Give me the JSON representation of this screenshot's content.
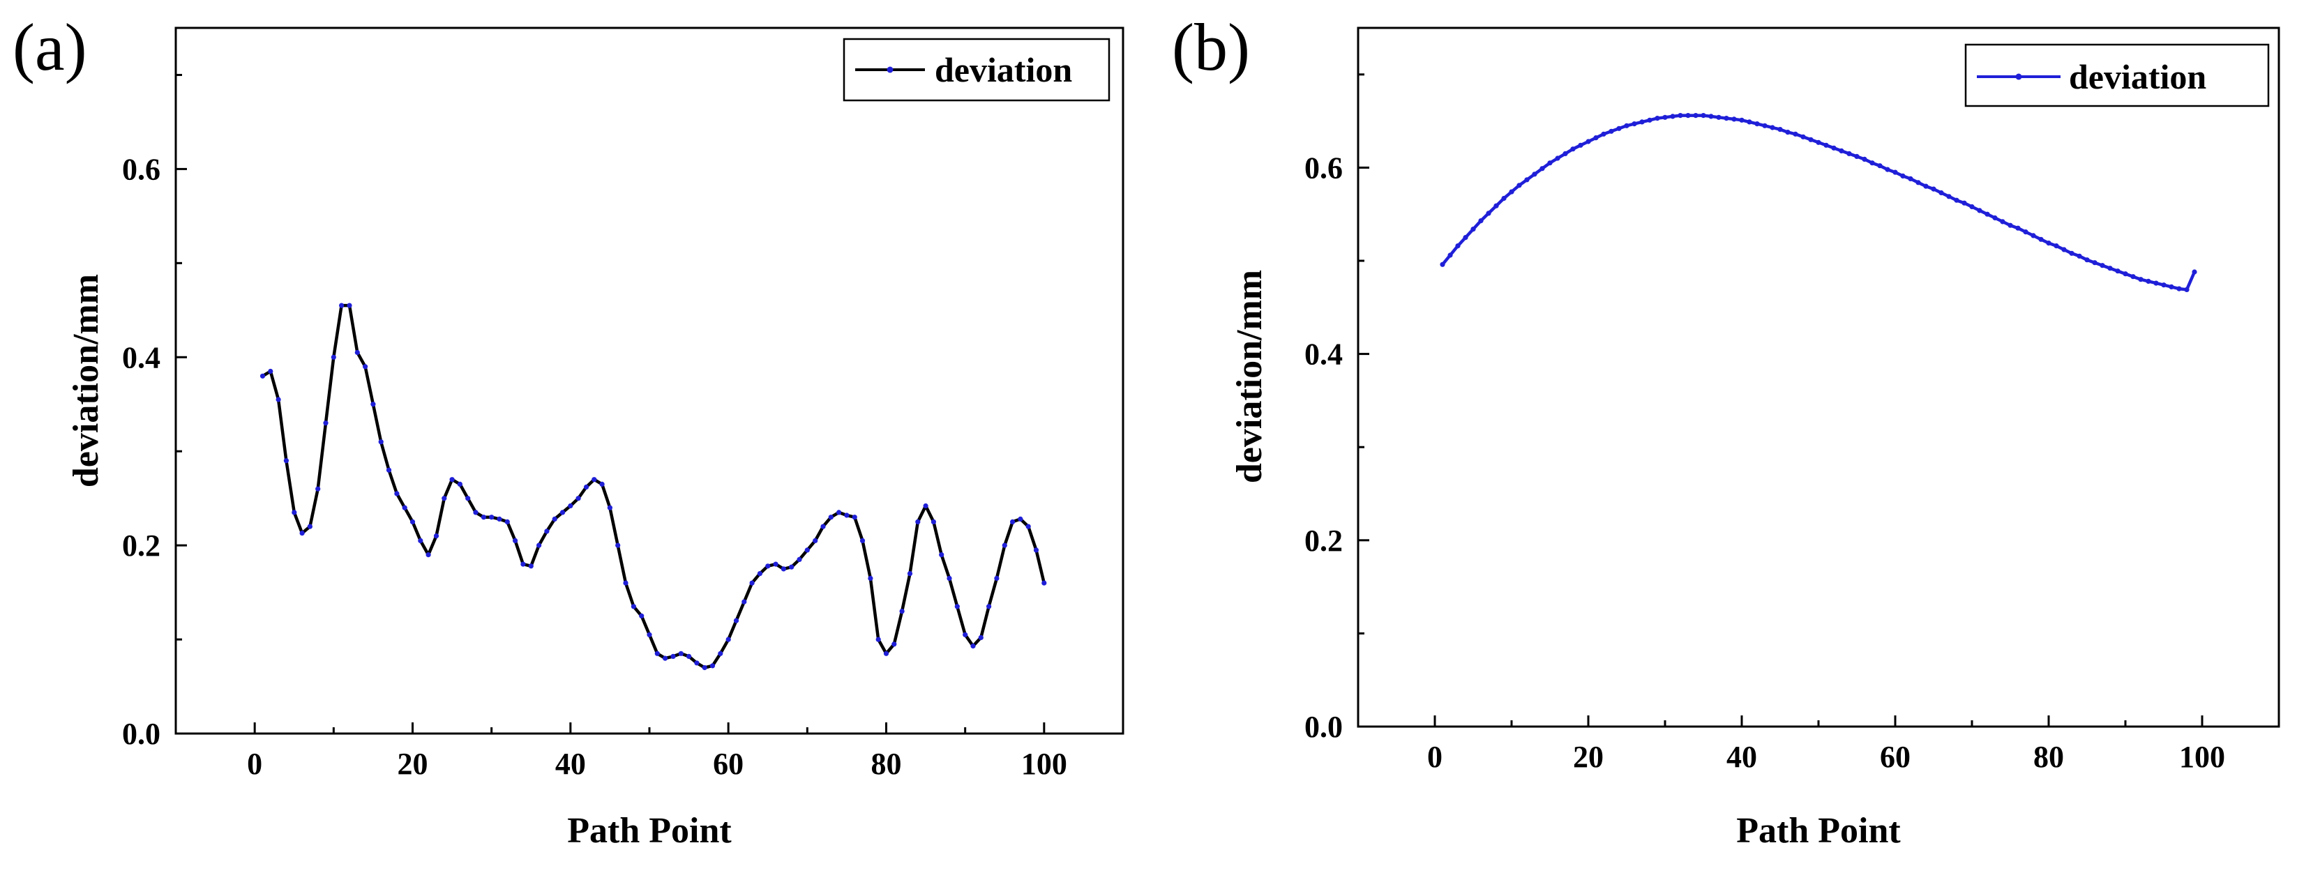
{
  "chart_data": [
    {
      "panel": "(a)",
      "type": "line",
      "title": "",
      "xlabel": "Path Point",
      "ylabel": "deviation/mm",
      "xlim": [
        -10,
        110
      ],
      "ylim": [
        0,
        0.75
      ],
      "xticks": [
        0,
        20,
        40,
        60,
        80,
        100
      ],
      "yticks": [
        0.0,
        0.2,
        0.4,
        0.6
      ],
      "xtick_labels": [
        "0",
        "20",
        "40",
        "60",
        "80",
        "100"
      ],
      "ytick_labels": [
        "0.0",
        "0.2",
        "0.4",
        "0.6"
      ],
      "legend": "top-right",
      "series": [
        {
          "name": "deviation",
          "line_color": "#000000",
          "marker_color": "#1f1fd8",
          "x": [
            1,
            2,
            3,
            4,
            5,
            6,
            7,
            8,
            9,
            10,
            11,
            12,
            13,
            14,
            15,
            16,
            17,
            18,
            19,
            20,
            21,
            22,
            23,
            24,
            25,
            26,
            27,
            28,
            29,
            30,
            31,
            32,
            33,
            34,
            35,
            36,
            37,
            38,
            39,
            40,
            41,
            42,
            43,
            44,
            45,
            46,
            47,
            48,
            49,
            50,
            51,
            52,
            53,
            54,
            55,
            56,
            57,
            58,
            59,
            60,
            61,
            62,
            63,
            64,
            65,
            66,
            67,
            68,
            69,
            70,
            71,
            72,
            73,
            74,
            75,
            76,
            77,
            78,
            79,
            80,
            81,
            82,
            83,
            84,
            85,
            86,
            87,
            88,
            89,
            90,
            91,
            92,
            93,
            94,
            95,
            96,
            97,
            98,
            99,
            100
          ],
          "y": [
            0.38,
            0.385,
            0.355,
            0.29,
            0.235,
            0.213,
            0.22,
            0.26,
            0.33,
            0.4,
            0.455,
            0.455,
            0.405,
            0.39,
            0.35,
            0.31,
            0.28,
            0.255,
            0.24,
            0.225,
            0.205,
            0.19,
            0.21,
            0.25,
            0.27,
            0.265,
            0.25,
            0.235,
            0.23,
            0.23,
            0.228,
            0.225,
            0.205,
            0.18,
            0.178,
            0.2,
            0.215,
            0.228,
            0.235,
            0.242,
            0.25,
            0.262,
            0.27,
            0.265,
            0.24,
            0.2,
            0.16,
            0.135,
            0.125,
            0.105,
            0.085,
            0.08,
            0.082,
            0.085,
            0.082,
            0.075,
            0.07,
            0.072,
            0.085,
            0.1,
            0.12,
            0.14,
            0.16,
            0.17,
            0.178,
            0.18,
            0.175,
            0.177,
            0.185,
            0.195,
            0.205,
            0.22,
            0.23,
            0.235,
            0.232,
            0.23,
            0.205,
            0.165,
            0.1,
            0.085,
            0.095,
            0.13,
            0.17,
            0.225,
            0.242,
            0.225,
            0.19,
            0.165,
            0.135,
            0.105,
            0.093,
            0.102,
            0.135,
            0.165,
            0.2,
            0.225,
            0.228,
            0.22,
            0.195,
            0.16
          ]
        }
      ]
    },
    {
      "panel": "(b)",
      "type": "line",
      "title": "",
      "xlabel": "Path Point",
      "ylabel": "deviation/mm",
      "xlim": [
        -10,
        110
      ],
      "ylim": [
        0,
        0.75
      ],
      "xticks": [
        0,
        20,
        40,
        60,
        80,
        100
      ],
      "yticks": [
        0.0,
        0.2,
        0.4,
        0.6
      ],
      "xtick_labels": [
        "0",
        "20",
        "40",
        "60",
        "80",
        "100"
      ],
      "ytick_labels": [
        "0.0",
        "0.2",
        "0.4",
        "0.6"
      ],
      "legend": "top-right",
      "series": [
        {
          "name": "deviation",
          "line_color": "#1f1fd8",
          "marker_color": "#1f1fd8",
          "x": [
            1,
            2,
            3,
            4,
            5,
            6,
            7,
            8,
            9,
            10,
            11,
            12,
            13,
            14,
            15,
            16,
            17,
            18,
            19,
            20,
            21,
            22,
            23,
            24,
            25,
            26,
            27,
            28,
            29,
            30,
            31,
            32,
            33,
            34,
            35,
            36,
            37,
            38,
            39,
            40,
            41,
            42,
            43,
            44,
            45,
            46,
            47,
            48,
            49,
            50,
            51,
            52,
            53,
            54,
            55,
            56,
            57,
            58,
            59,
            60,
            61,
            62,
            63,
            64,
            65,
            66,
            67,
            68,
            69,
            70,
            71,
            72,
            73,
            74,
            75,
            76,
            77,
            78,
            79,
            80,
            81,
            82,
            83,
            84,
            85,
            86,
            87,
            88,
            89,
            90,
            91,
            92,
            93,
            94,
            95,
            96,
            97,
            98,
            99
          ],
          "y": [
            0.496,
            0.506,
            0.516,
            0.525,
            0.534,
            0.543,
            0.551,
            0.559,
            0.567,
            0.574,
            0.581,
            0.587,
            0.593,
            0.599,
            0.605,
            0.61,
            0.615,
            0.62,
            0.624,
            0.628,
            0.632,
            0.636,
            0.639,
            0.642,
            0.645,
            0.647,
            0.649,
            0.651,
            0.653,
            0.654,
            0.655,
            0.656,
            0.656,
            0.656,
            0.656,
            0.655,
            0.654,
            0.653,
            0.652,
            0.651,
            0.649,
            0.647,
            0.645,
            0.643,
            0.641,
            0.638,
            0.636,
            0.633,
            0.63,
            0.627,
            0.624,
            0.621,
            0.618,
            0.615,
            0.612,
            0.609,
            0.605,
            0.602,
            0.598,
            0.595,
            0.591,
            0.588,
            0.584,
            0.58,
            0.577,
            0.573,
            0.569,
            0.565,
            0.562,
            0.558,
            0.554,
            0.55,
            0.546,
            0.542,
            0.538,
            0.535,
            0.531,
            0.527,
            0.523,
            0.519,
            0.516,
            0.512,
            0.508,
            0.505,
            0.501,
            0.498,
            0.495,
            0.492,
            0.489,
            0.486,
            0.483,
            0.48,
            0.478,
            0.476,
            0.474,
            0.472,
            0.47,
            0.469,
            0.488
          ]
        }
      ]
    }
  ]
}
